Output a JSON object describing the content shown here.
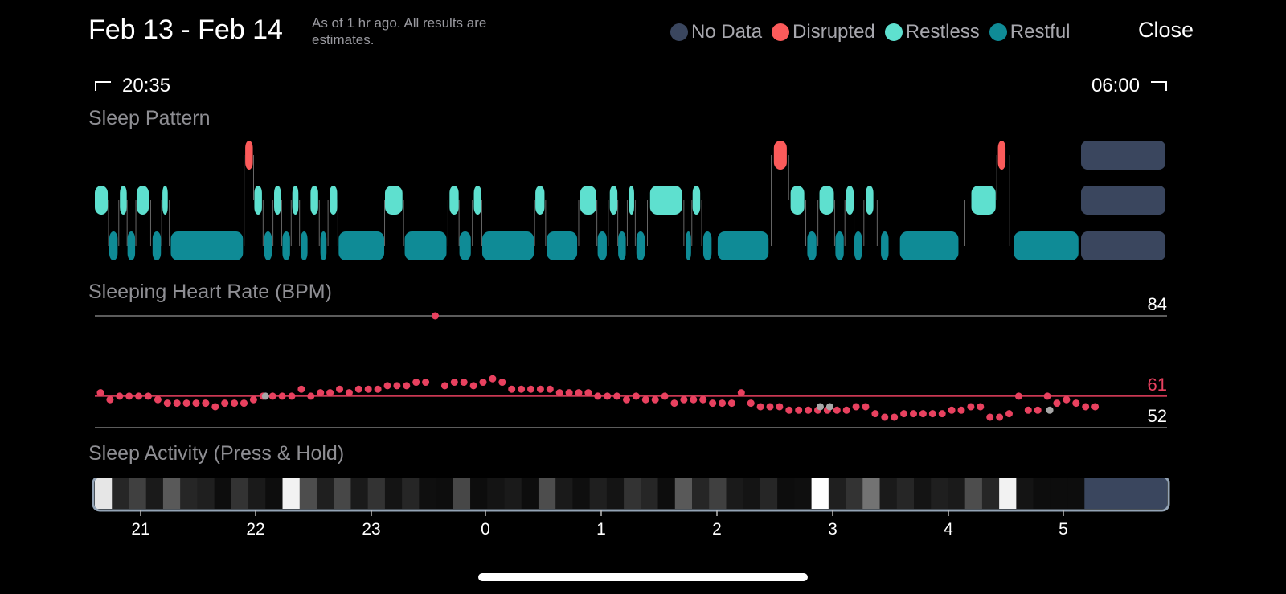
{
  "header": {
    "date_range": "Feb 13 - Feb 14",
    "subtitle": "As of 1 hr ago. All results are estimates.",
    "close_label": "Close"
  },
  "legend": [
    {
      "label": "No Data",
      "color": "#3a465e"
    },
    {
      "label": "Disrupted",
      "color": "#fb5a5a"
    },
    {
      "label": "Restless",
      "color": "#5ee0cf"
    },
    {
      "label": "Restful",
      "color": "#0f8b96"
    }
  ],
  "time_range": {
    "start": "20:35",
    "end": "06:00"
  },
  "sections": {
    "sleep_pattern": "Sleep Pattern",
    "heart_rate": "Sleeping Heart Rate (BPM)",
    "activity": "Sleep Activity (Press & Hold)"
  },
  "chart_data": [
    {
      "type": "timeline",
      "name": "Sleep Pattern",
      "x_unit": "hours since 20:35",
      "levels": [
        "Disrupted",
        "Restless",
        "Restful"
      ],
      "segments": [
        {
          "state": "Restless",
          "start": 0.0,
          "end": 0.17
        },
        {
          "state": "Restful",
          "start": 0.19,
          "end": 0.3
        },
        {
          "state": "Restless",
          "start": 0.33,
          "end": 0.42
        },
        {
          "state": "Restful",
          "start": 0.43,
          "end": 0.53
        },
        {
          "state": "Restless",
          "start": 0.55,
          "end": 0.71
        },
        {
          "state": "Restful",
          "start": 0.76,
          "end": 0.87
        },
        {
          "state": "Restless",
          "start": 0.89,
          "end": 0.96
        },
        {
          "state": "Restful",
          "start": 1.0,
          "end": 1.95
        },
        {
          "state": "Disrupted",
          "start": 1.98,
          "end": 2.08
        },
        {
          "state": "Restless",
          "start": 2.1,
          "end": 2.2
        },
        {
          "state": "Restful",
          "start": 2.23,
          "end": 2.33
        },
        {
          "state": "Restless",
          "start": 2.36,
          "end": 2.45
        },
        {
          "state": "Restful",
          "start": 2.47,
          "end": 2.57
        },
        {
          "state": "Restless",
          "start": 2.6,
          "end": 2.68
        },
        {
          "state": "Restful",
          "start": 2.71,
          "end": 2.8
        },
        {
          "state": "Restless",
          "start": 2.84,
          "end": 2.94
        },
        {
          "state": "Restful",
          "start": 2.97,
          "end": 3.05
        },
        {
          "state": "Restless",
          "start": 3.09,
          "end": 3.19
        },
        {
          "state": "Restful",
          "start": 3.21,
          "end": 3.81
        },
        {
          "state": "Restless",
          "start": 3.82,
          "end": 4.05
        },
        {
          "state": "Restful",
          "start": 4.08,
          "end": 4.63
        },
        {
          "state": "Restless",
          "start": 4.67,
          "end": 4.79
        },
        {
          "state": "Restful",
          "start": 4.8,
          "end": 4.95
        },
        {
          "state": "Restless",
          "start": 4.99,
          "end": 5.09
        },
        {
          "state": "Restful",
          "start": 5.1,
          "end": 5.78
        },
        {
          "state": "Restless",
          "start": 5.8,
          "end": 5.92
        },
        {
          "state": "Restful",
          "start": 5.95,
          "end": 6.35
        },
        {
          "state": "Restless",
          "start": 6.39,
          "end": 6.6
        },
        {
          "state": "Restful",
          "start": 6.62,
          "end": 6.74
        },
        {
          "state": "Restless",
          "start": 6.78,
          "end": 6.88
        },
        {
          "state": "Restful",
          "start": 6.89,
          "end": 6.99
        },
        {
          "state": "Restless",
          "start": 7.03,
          "end": 7.1
        },
        {
          "state": "Restful",
          "start": 7.13,
          "end": 7.24
        },
        {
          "state": "Restless",
          "start": 7.31,
          "end": 7.73
        },
        {
          "state": "Restful",
          "start": 7.78,
          "end": 7.85
        },
        {
          "state": "Restless",
          "start": 7.87,
          "end": 7.97
        },
        {
          "state": "Restful",
          "start": 8.01,
          "end": 8.12
        },
        {
          "state": "Restful",
          "start": 8.2,
          "end": 8.87
        },
        {
          "state": "Disrupted",
          "start": 8.94,
          "end": 9.11
        },
        {
          "state": "Restless",
          "start": 9.16,
          "end": 9.34
        },
        {
          "state": "Restful",
          "start": 9.38,
          "end": 9.5
        },
        {
          "state": "Restless",
          "start": 9.54,
          "end": 9.73
        },
        {
          "state": "Restful",
          "start": 9.75,
          "end": 9.86
        },
        {
          "state": "Restless",
          "start": 9.89,
          "end": 9.99
        },
        {
          "state": "Restful",
          "start": 10.0,
          "end": 10.1
        },
        {
          "state": "Restless",
          "start": 10.15,
          "end": 10.25
        },
        {
          "state": "Restful",
          "start": 10.35,
          "end": 10.45
        },
        {
          "state": "Restful",
          "start": 10.6,
          "end": 11.37
        },
        {
          "state": "Restless",
          "start": 11.54,
          "end": 11.86
        },
        {
          "state": "Disrupted",
          "start": 11.89,
          "end": 11.99
        },
        {
          "state": "Restful",
          "start": 12.1,
          "end": 12.95
        }
      ],
      "no_data": {
        "start": 13.0,
        "end": 14.2
      }
    },
    {
      "type": "scatter",
      "name": "Sleeping Heart Rate (BPM)",
      "y_reference_lines": [
        {
          "value": 84,
          "label": "84"
        },
        {
          "value": 61,
          "label": "61"
        },
        {
          "value": 52,
          "label": "52"
        }
      ],
      "points": [
        [
          0,
          62
        ],
        [
          1,
          60
        ],
        [
          2,
          61
        ],
        [
          3,
          61
        ],
        [
          4,
          61
        ],
        [
          5,
          61
        ],
        [
          6,
          60
        ],
        [
          7,
          59
        ],
        [
          8,
          59
        ],
        [
          9,
          59
        ],
        [
          10,
          59
        ],
        [
          11,
          59
        ],
        [
          12,
          58
        ],
        [
          13,
          59
        ],
        [
          14,
          59
        ],
        [
          15,
          59
        ],
        [
          16,
          60
        ],
        [
          17,
          61
        ],
        [
          18,
          61
        ],
        [
          19,
          61
        ],
        [
          20,
          61
        ],
        [
          21,
          63
        ],
        [
          22,
          61
        ],
        [
          23,
          62
        ],
        [
          24,
          62
        ],
        [
          25,
          63
        ],
        [
          26,
          62
        ],
        [
          27,
          63
        ],
        [
          28,
          63
        ],
        [
          29,
          63
        ],
        [
          30,
          64
        ],
        [
          31,
          64
        ],
        [
          32,
          64
        ],
        [
          33,
          65
        ],
        [
          34,
          65
        ],
        [
          35,
          84
        ],
        [
          36,
          64
        ],
        [
          37,
          65
        ],
        [
          38,
          65
        ],
        [
          39,
          64
        ],
        [
          40,
          65
        ],
        [
          41,
          66
        ],
        [
          42,
          65
        ],
        [
          43,
          63
        ],
        [
          44,
          63
        ],
        [
          45,
          63
        ],
        [
          46,
          63
        ],
        [
          47,
          63
        ],
        [
          48,
          62
        ],
        [
          49,
          62
        ],
        [
          50,
          62
        ],
        [
          51,
          62
        ],
        [
          52,
          61
        ],
        [
          53,
          61
        ],
        [
          54,
          61
        ],
        [
          55,
          60
        ],
        [
          56,
          61
        ],
        [
          57,
          60
        ],
        [
          58,
          60
        ],
        [
          59,
          61
        ],
        [
          60,
          59
        ],
        [
          61,
          60
        ],
        [
          62,
          60
        ],
        [
          63,
          60
        ],
        [
          64,
          59
        ],
        [
          65,
          59
        ],
        [
          66,
          59
        ],
        [
          67,
          62
        ],
        [
          68,
          59
        ],
        [
          69,
          58
        ],
        [
          70,
          58
        ],
        [
          71,
          58
        ],
        [
          72,
          57
        ],
        [
          73,
          57
        ],
        [
          74,
          57
        ],
        [
          75,
          57
        ],
        [
          76,
          57
        ],
        [
          77,
          57
        ],
        [
          78,
          57
        ],
        [
          79,
          58
        ],
        [
          80,
          58
        ],
        [
          81,
          56
        ],
        [
          82,
          55
        ],
        [
          83,
          55
        ],
        [
          84,
          56
        ],
        [
          85,
          56
        ],
        [
          86,
          56
        ],
        [
          87,
          56
        ],
        [
          88,
          56
        ],
        [
          89,
          57
        ],
        [
          90,
          57
        ],
        [
          91,
          58
        ],
        [
          92,
          58
        ],
        [
          93,
          55
        ],
        [
          94,
          55
        ],
        [
          95,
          56
        ],
        [
          96,
          61
        ],
        [
          97,
          57
        ],
        [
          98,
          57
        ],
        [
          99,
          61
        ],
        [
          100,
          59
        ],
        [
          101,
          60
        ],
        [
          102,
          59
        ],
        [
          103,
          58
        ],
        [
          104,
          58
        ]
      ],
      "gray_points": [
        [
          17,
          61
        ],
        [
          75,
          58
        ],
        [
          76,
          58
        ],
        [
          99,
          57
        ]
      ]
    },
    {
      "type": "heatmap",
      "name": "Sleep Activity (Press & Hold)",
      "x_tick_labels": [
        "21",
        "22",
        "23",
        "0",
        "1",
        "2",
        "3",
        "4",
        "5"
      ],
      "cells": [
        0.9,
        0.15,
        0.25,
        0.1,
        0.35,
        0.15,
        0.12,
        0.05,
        0.2,
        0.1,
        0.05,
        0.95,
        0.3,
        0.12,
        0.28,
        0.1,
        0.2,
        0.08,
        0.15,
        0.06,
        0.05,
        0.28,
        0.05,
        0.08,
        0.1,
        0.05,
        0.3,
        0.1,
        0.06,
        0.12,
        0.08,
        0.2,
        0.15,
        0.05,
        0.35,
        0.15,
        0.25,
        0.1,
        0.08,
        0.15,
        0.05,
        0.06,
        1.0,
        0.12,
        0.2,
        0.45,
        0.1,
        0.15,
        0.08,
        0.12,
        0.1,
        0.3,
        0.15,
        0.95,
        0.08,
        0.05,
        0.05,
        0.05
      ],
      "no_data_start": 0.923
    }
  ],
  "gray_dot_color": "#a8a8a8"
}
